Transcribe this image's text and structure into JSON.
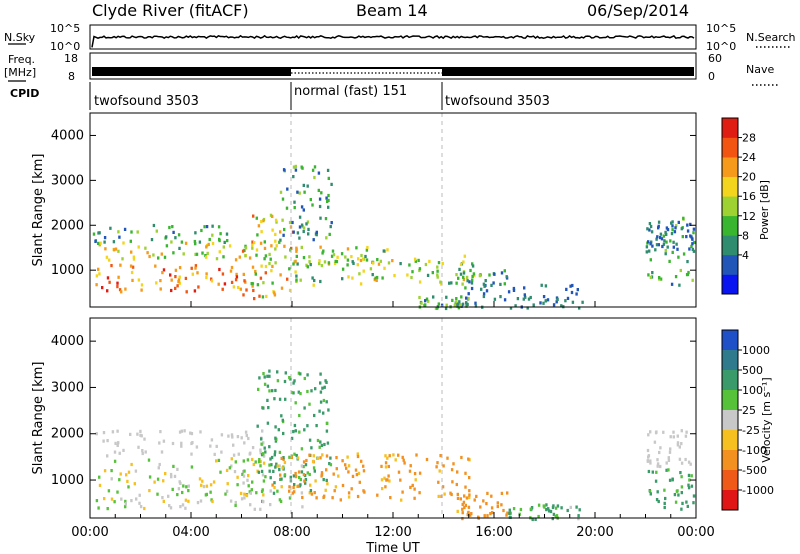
{
  "header": {
    "station": "Clyde River (fitACF)",
    "beam": "Beam 14",
    "date": "06/Sep/2014"
  },
  "noise_panel": {
    "left_label": "N.Sky",
    "left_ticks": [
      "10^5",
      "10^0"
    ],
    "right_ticks": [
      "10^5",
      "10^0"
    ],
    "right_label": "N.Search"
  },
  "freq_panel": {
    "left_label_1": "Freq.",
    "left_label_2": "[MHz]",
    "left_ticks": [
      "18",
      "8"
    ],
    "right_ticks": [
      "60",
      "0"
    ],
    "right_label": "Nave"
  },
  "cpid_panel": {
    "label": "CPID",
    "segments": [
      {
        "name": "twofsound 3503",
        "start_hour": 0,
        "end_hour": 8
      },
      {
        "name": "normal (fast) 151",
        "start_hour": 8,
        "end_hour": 14
      },
      {
        "name": "twofsound 3503",
        "start_hour": 14,
        "end_hour": 24
      }
    ]
  },
  "power_colorbar": {
    "label": "Power [dB]",
    "ticks": [
      "28",
      "24",
      "20",
      "16",
      "12",
      "8",
      "4"
    ],
    "colors": [
      "#0a14f0",
      "#2255b8",
      "#2f8c6e",
      "#39b52f",
      "#9ed233",
      "#f2d51c",
      "#f59a1a",
      "#f25512",
      "#e01d12"
    ]
  },
  "velocity_colorbar": {
    "label": "Velocity [m s⁻¹]",
    "ticks": [
      "1000",
      "500",
      "100",
      "25",
      "-25",
      "-100",
      "-500",
      "-1000"
    ],
    "colors": [
      "#2050c8",
      "#2f7a8c",
      "#3a9a6a",
      "#55c23a",
      "#c8c8c8",
      "#f5c020",
      "#f29020",
      "#f05a18",
      "#e01515"
    ]
  },
  "xaxis": {
    "label": "Time UT",
    "ticks": [
      "00:00",
      "04:00",
      "08:00",
      "12:00",
      "16:00",
      "20:00",
      "00:00"
    ]
  },
  "chart_data": [
    {
      "type": "heatmap",
      "title": "",
      "xlabel": "",
      "ylabel": "Slant Range [km]",
      "xlim_hours": [
        0,
        24
      ],
      "ylim": [
        180,
        4500
      ],
      "y_ticks": [
        1000,
        2000,
        3000,
        4000
      ],
      "colorbar": "Power [dB]",
      "scatter_regions": [
        {
          "t0": 0.1,
          "t1": 7.0,
          "r0": 550,
          "r1": 1150,
          "v0": 20,
          "v1": 30
        },
        {
          "t0": 0.2,
          "t1": 6.8,
          "r0": 1200,
          "r1": 1650,
          "v0": 10,
          "v1": 24
        },
        {
          "t0": 0.1,
          "t1": 6.0,
          "r0": 1650,
          "r1": 2050,
          "v0": 6,
          "v1": 16
        },
        {
          "t0": 6.0,
          "t1": 8.0,
          "r0": 400,
          "r1": 2300,
          "v0": 10,
          "v1": 28
        },
        {
          "t0": 7.5,
          "t1": 9.6,
          "r0": 1700,
          "r1": 3400,
          "v0": 4,
          "v1": 16
        },
        {
          "t0": 8.0,
          "t1": 12.0,
          "r0": 1150,
          "r1": 1550,
          "v0": 10,
          "v1": 24
        },
        {
          "t0": 8.0,
          "t1": 15.5,
          "r0": 700,
          "r1": 1350,
          "v0": 8,
          "v1": 22
        },
        {
          "t0": 13.0,
          "t1": 15.0,
          "r0": 180,
          "r1": 450,
          "v0": 6,
          "v1": 16
        },
        {
          "t0": 14.5,
          "t1": 16.5,
          "r0": 200,
          "r1": 1100,
          "v0": 4,
          "v1": 14
        },
        {
          "t0": 16.5,
          "t1": 19.5,
          "r0": 180,
          "r1": 700,
          "v0": 4,
          "v1": 10
        },
        {
          "t0": 22.0,
          "t1": 23.9,
          "r0": 700,
          "r1": 2200,
          "v0": 6,
          "v1": 16
        },
        {
          "t0": 22.0,
          "t1": 23.9,
          "r0": 1400,
          "r1": 2100,
          "v0": 4,
          "v1": 10
        }
      ]
    },
    {
      "type": "heatmap",
      "title": "",
      "xlabel": "Time UT",
      "ylabel": "Slant Range [km]",
      "xlim_hours": [
        0,
        24
      ],
      "ylim": [
        180,
        4500
      ],
      "y_ticks": [
        1000,
        2000,
        3000,
        4000
      ],
      "colorbar": "Velocity [m s⁻¹]",
      "scatter_regions": [
        {
          "t0": 0.2,
          "t1": 7.0,
          "r0": 1550,
          "r1": 2100,
          "v0": -20,
          "v1": 20
        },
        {
          "t0": 0.2,
          "t1": 7.0,
          "r0": 700,
          "r1": 1500,
          "v0": -100,
          "v1": 100
        },
        {
          "t0": 0.2,
          "t1": 7.0,
          "r0": 400,
          "r1": 700,
          "v0": -60,
          "v1": 60
        },
        {
          "t0": 6.5,
          "t1": 9.5,
          "r0": 900,
          "r1": 3400,
          "v0": 30,
          "v1": 300
        },
        {
          "t0": 7.0,
          "t1": 9.0,
          "r0": 400,
          "r1": 1600,
          "v0": -150,
          "v1": 150
        },
        {
          "t0": 8.0,
          "t1": 15.0,
          "r0": 600,
          "r1": 1600,
          "v0": -250,
          "v1": -50
        },
        {
          "t0": 14.5,
          "t1": 16.5,
          "r0": 200,
          "r1": 800,
          "v0": -400,
          "v1": -80
        },
        {
          "t0": 16.5,
          "t1": 19.5,
          "r0": 180,
          "r1": 500,
          "v0": 20,
          "v1": 200
        },
        {
          "t0": 22.0,
          "t1": 23.9,
          "r0": 1300,
          "r1": 2100,
          "v0": -20,
          "v1": 20
        },
        {
          "t0": 22.0,
          "t1": 23.9,
          "r0": 400,
          "r1": 1300,
          "v0": 30,
          "v1": 400
        }
      ]
    }
  ]
}
